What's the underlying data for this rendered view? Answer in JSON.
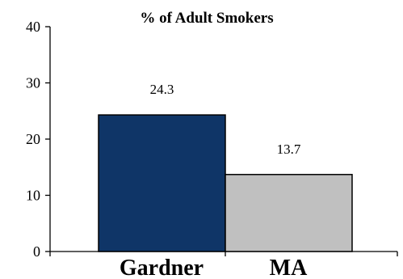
{
  "chart_data": {
    "type": "bar",
    "title": "% of Adult Smokers",
    "xlabel": "",
    "ylabel": "",
    "categories": [
      "Gardner",
      "MA"
    ],
    "values": [
      24.3,
      13.7
    ],
    "data_labels": [
      "24.3",
      "13.7"
    ],
    "colors": [
      "#0f3567",
      "#c0c0c0"
    ],
    "ylim": [
      0,
      40
    ],
    "yticks": [
      0,
      10,
      20,
      30,
      40
    ],
    "grid": false,
    "legend": "none"
  }
}
